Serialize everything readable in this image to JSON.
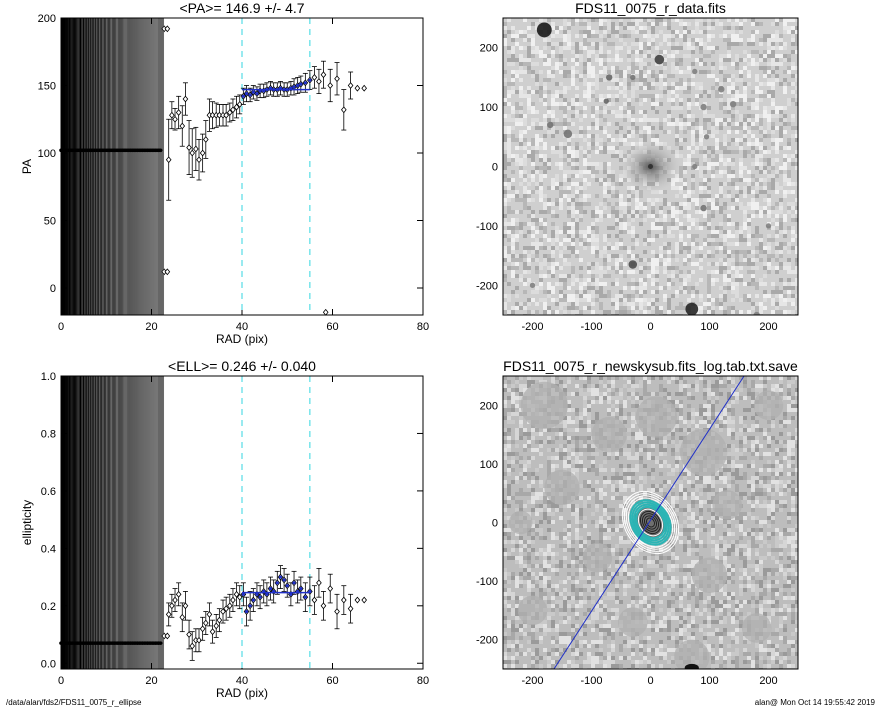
{
  "footer": {
    "left": "/data/alan/fds2/FDS11_0075_r_ellipse",
    "right": "alan@  Mon Oct 14 19:55:42 2019"
  },
  "chart_data": [
    {
      "type": "scatter",
      "title": "<PA>= 146.9 +/-   4.7",
      "xlabel": "RAD (pix)",
      "ylabel": "PA",
      "xlim": [
        0,
        80
      ],
      "ylim": [
        -20,
        200
      ],
      "xticks": [
        0,
        20,
        40,
        60,
        80
      ],
      "yticks": [
        0,
        50,
        100,
        150,
        200
      ],
      "xtick_labels": [
        "0",
        "20",
        "40",
        "60",
        "80"
      ],
      "ytick_labels": [
        "0",
        "50",
        "100",
        "150",
        "200"
      ],
      "fit_range": [
        40,
        55
      ],
      "mean_value": 146.9,
      "inner_flat_value": 102,
      "inner_flat_range": [
        0,
        22
      ],
      "outliers": [
        [
          22.8,
          192
        ],
        [
          22.8,
          12
        ],
        [
          23.5,
          192
        ],
        [
          23.5,
          12
        ],
        [
          58.5,
          -18
        ]
      ],
      "points": [
        {
          "x": 23.8,
          "y": 95,
          "err": 30
        },
        {
          "x": 24.5,
          "y": 128,
          "err": 10
        },
        {
          "x": 25.2,
          "y": 125,
          "err": 8
        },
        {
          "x": 26,
          "y": 130,
          "err": 12
        },
        {
          "x": 26.8,
          "y": 120,
          "err": 15
        },
        {
          "x": 27.5,
          "y": 140,
          "err": 12
        },
        {
          "x": 28.3,
          "y": 104,
          "err": 20
        },
        {
          "x": 29,
          "y": 100,
          "err": 18
        },
        {
          "x": 29.8,
          "y": 103,
          "err": 16
        },
        {
          "x": 30.5,
          "y": 95,
          "err": 15
        },
        {
          "x": 31.3,
          "y": 100,
          "err": 14
        },
        {
          "x": 32,
          "y": 110,
          "err": 14
        },
        {
          "x": 32.8,
          "y": 128,
          "err": 12
        },
        {
          "x": 33.5,
          "y": 128,
          "err": 10
        },
        {
          "x": 34.3,
          "y": 128,
          "err": 9
        },
        {
          "x": 35,
          "y": 128,
          "err": 8
        },
        {
          "x": 35.8,
          "y": 128,
          "err": 8
        },
        {
          "x": 36.5,
          "y": 128,
          "err": 8
        },
        {
          "x": 37.3,
          "y": 130,
          "err": 7
        },
        {
          "x": 38,
          "y": 132,
          "err": 8
        },
        {
          "x": 38.8,
          "y": 134,
          "err": 8
        },
        {
          "x": 39.5,
          "y": 136,
          "err": 7
        },
        {
          "x": 40.3,
          "y": 142,
          "err": 6
        },
        {
          "x": 41,
          "y": 144,
          "err": 6
        },
        {
          "x": 41.8,
          "y": 143,
          "err": 5
        },
        {
          "x": 42.5,
          "y": 145,
          "err": 5
        },
        {
          "x": 43.3,
          "y": 144,
          "err": 5
        },
        {
          "x": 44,
          "y": 146,
          "err": 5
        },
        {
          "x": 44.8,
          "y": 146,
          "err": 5
        },
        {
          "x": 45.5,
          "y": 147,
          "err": 5
        },
        {
          "x": 46.3,
          "y": 148,
          "err": 5
        },
        {
          "x": 47,
          "y": 147,
          "err": 5
        },
        {
          "x": 47.8,
          "y": 147,
          "err": 5
        },
        {
          "x": 48.5,
          "y": 148,
          "err": 5
        },
        {
          "x": 49.3,
          "y": 147,
          "err": 5
        },
        {
          "x": 50,
          "y": 147,
          "err": 5
        },
        {
          "x": 50.8,
          "y": 148,
          "err": 5
        },
        {
          "x": 51.5,
          "y": 149,
          "err": 6
        },
        {
          "x": 52.3,
          "y": 150,
          "err": 6
        },
        {
          "x": 53,
          "y": 151,
          "err": 6
        },
        {
          "x": 54,
          "y": 152,
          "err": 7
        },
        {
          "x": 55,
          "y": 154,
          "err": 7
        },
        {
          "x": 56,
          "y": 156,
          "err": 8
        },
        {
          "x": 57,
          "y": 153,
          "err": 9
        },
        {
          "x": 58,
          "y": 158,
          "err": 10
        },
        {
          "x": 59.5,
          "y": 150,
          "err": 12
        },
        {
          "x": 61,
          "y": 155,
          "err": 12
        },
        {
          "x": 62.5,
          "y": 132,
          "err": 15
        },
        {
          "x": 64,
          "y": 150,
          "err": 10
        },
        {
          "x": 65.5,
          "y": 148,
          "err": 0
        },
        {
          "x": 67,
          "y": 148,
          "err": 0
        }
      ]
    },
    {
      "type": "image",
      "title": "FDS11_0075_r_data.fits",
      "xlim": [
        -250,
        250
      ],
      "ylim": [
        -250,
        250
      ],
      "xticks": [
        -200,
        -100,
        0,
        100,
        200
      ],
      "yticks": [
        -200,
        -100,
        0,
        100,
        200
      ],
      "xtick_labels": [
        "-200",
        "-100",
        "0",
        "100",
        "200"
      ],
      "ytick_labels": [
        "-200",
        "-100",
        "0",
        "100",
        "200"
      ],
      "sources": [
        {
          "x": -180,
          "y": 230,
          "r": 14,
          "v": 0.1
        },
        {
          "x": 15,
          "y": 180,
          "r": 9,
          "v": 0.25
        },
        {
          "x": -70,
          "y": 150,
          "r": 6,
          "v": 0.4
        },
        {
          "x": -30,
          "y": 150,
          "r": 5,
          "v": 0.45
        },
        {
          "x": -75,
          "y": 110,
          "r": 5,
          "v": 0.4
        },
        {
          "x": -170,
          "y": 70,
          "r": 6,
          "v": 0.45
        },
        {
          "x": -140,
          "y": 55,
          "r": 8,
          "v": 0.45
        },
        {
          "x": 75,
          "y": 160,
          "r": 5,
          "v": 0.5
        },
        {
          "x": 90,
          "y": 100,
          "r": 6,
          "v": 0.5
        },
        {
          "x": 120,
          "y": 130,
          "r": 6,
          "v": 0.5
        },
        {
          "x": 140,
          "y": 105,
          "r": 6,
          "v": 0.5
        },
        {
          "x": 95,
          "y": 50,
          "r": 5,
          "v": 0.5
        },
        {
          "x": 75,
          "y": 0,
          "r": 5,
          "v": 0.5
        },
        {
          "x": 90,
          "y": -70,
          "r": 6,
          "v": 0.45
        },
        {
          "x": -30,
          "y": -165,
          "r": 8,
          "v": 0.3
        },
        {
          "x": 70,
          "y": -240,
          "r": 12,
          "v": 0.15
        },
        {
          "x": -200,
          "y": -200,
          "r": 5,
          "v": 0.5
        },
        {
          "x": 200,
          "y": -100,
          "r": 5,
          "v": 0.5
        },
        {
          "x": 180,
          "y": -250,
          "r": 6,
          "v": 0.5
        }
      ]
    },
    {
      "type": "scatter",
      "title": "<ELL>= 0.246 +/-  0.040",
      "xlabel": "RAD (pix)",
      "ylabel": "ellipticity",
      "xlim": [
        0,
        80
      ],
      "ylim": [
        -0.02,
        1.0
      ],
      "xticks": [
        0,
        20,
        40,
        60,
        80
      ],
      "yticks": [
        0.0,
        0.2,
        0.4,
        0.6,
        0.8,
        1.0
      ],
      "xtick_labels": [
        "0",
        "20",
        "40",
        "60",
        "80"
      ],
      "ytick_labels": [
        "0.0",
        "0.2",
        "0.4",
        "0.6",
        "0.8",
        "1.0"
      ],
      "fit_range": [
        40,
        55
      ],
      "mean_value": 0.246,
      "inner_flat_value": 0.07,
      "inner_flat_range": [
        0,
        22
      ],
      "outliers": [
        [
          22.8,
          0.095
        ],
        [
          23.5,
          0.095
        ]
      ],
      "points": [
        {
          "x": 23.8,
          "y": 0.17,
          "err": 0.04
        },
        {
          "x": 24.5,
          "y": 0.2,
          "err": 0.04
        },
        {
          "x": 25.2,
          "y": 0.22,
          "err": 0.04
        },
        {
          "x": 26,
          "y": 0.24,
          "err": 0.04
        },
        {
          "x": 26.8,
          "y": 0.16,
          "err": 0.05
        },
        {
          "x": 27.5,
          "y": 0.2,
          "err": 0.05
        },
        {
          "x": 28.3,
          "y": 0.1,
          "err": 0.05
        },
        {
          "x": 29,
          "y": 0.06,
          "err": 0.05
        },
        {
          "x": 29.8,
          "y": 0.08,
          "err": 0.04
        },
        {
          "x": 30.5,
          "y": 0.08,
          "err": 0.04
        },
        {
          "x": 31.3,
          "y": 0.12,
          "err": 0.04
        },
        {
          "x": 32,
          "y": 0.14,
          "err": 0.04
        },
        {
          "x": 32.8,
          "y": 0.17,
          "err": 0.04
        },
        {
          "x": 33.5,
          "y": 0.11,
          "err": 0.04
        },
        {
          "x": 34.3,
          "y": 0.13,
          "err": 0.04
        },
        {
          "x": 35,
          "y": 0.15,
          "err": 0.04
        },
        {
          "x": 35.8,
          "y": 0.18,
          "err": 0.04
        },
        {
          "x": 36.5,
          "y": 0.19,
          "err": 0.04
        },
        {
          "x": 37.3,
          "y": 0.2,
          "err": 0.04
        },
        {
          "x": 38,
          "y": 0.22,
          "err": 0.04
        },
        {
          "x": 38.8,
          "y": 0.24,
          "err": 0.04
        },
        {
          "x": 39.5,
          "y": 0.23,
          "err": 0.04
        },
        {
          "x": 40.3,
          "y": 0.24,
          "err": 0.04
        },
        {
          "x": 41,
          "y": 0.18,
          "err": 0.05
        },
        {
          "x": 41.8,
          "y": 0.2,
          "err": 0.05
        },
        {
          "x": 42.5,
          "y": 0.22,
          "err": 0.04
        },
        {
          "x": 43.3,
          "y": 0.24,
          "err": 0.04
        },
        {
          "x": 44,
          "y": 0.23,
          "err": 0.04
        },
        {
          "x": 44.8,
          "y": 0.25,
          "err": 0.04
        },
        {
          "x": 45.5,
          "y": 0.24,
          "err": 0.04
        },
        {
          "x": 46.3,
          "y": 0.26,
          "err": 0.04
        },
        {
          "x": 47,
          "y": 0.25,
          "err": 0.04
        },
        {
          "x": 47.8,
          "y": 0.28,
          "err": 0.04
        },
        {
          "x": 48.5,
          "y": 0.3,
          "err": 0.04
        },
        {
          "x": 49.3,
          "y": 0.29,
          "err": 0.04
        },
        {
          "x": 50,
          "y": 0.27,
          "err": 0.04
        },
        {
          "x": 50.8,
          "y": 0.24,
          "err": 0.04
        },
        {
          "x": 51.5,
          "y": 0.28,
          "err": 0.04
        },
        {
          "x": 52.3,
          "y": 0.25,
          "err": 0.04
        },
        {
          "x": 53,
          "y": 0.26,
          "err": 0.04
        },
        {
          "x": 54,
          "y": 0.23,
          "err": 0.05
        },
        {
          "x": 55,
          "y": 0.25,
          "err": 0.05
        },
        {
          "x": 56,
          "y": 0.22,
          "err": 0.05
        },
        {
          "x": 57,
          "y": 0.28,
          "err": 0.05
        },
        {
          "x": 58,
          "y": 0.2,
          "err": 0.05
        },
        {
          "x": 59.5,
          "y": 0.26,
          "err": 0.05
        },
        {
          "x": 61,
          "y": 0.18,
          "err": 0.06
        },
        {
          "x": 62.5,
          "y": 0.22,
          "err": 0.05
        },
        {
          "x": 64,
          "y": 0.19,
          "err": 0.05
        },
        {
          "x": 65.5,
          "y": 0.22,
          "err": 0.0
        },
        {
          "x": 67,
          "y": 0.22,
          "err": 0.0
        }
      ]
    },
    {
      "type": "image",
      "title": "FDS11_0075_r_newskysub.fits_log.tab.txt.save",
      "xlim": [
        -250,
        250
      ],
      "ylim": [
        -250,
        250
      ],
      "xticks": [
        -200,
        -100,
        0,
        100,
        200
      ],
      "yticks": [
        -200,
        -100,
        0,
        100,
        200
      ],
      "xtick_labels": [
        "-200",
        "-100",
        "0",
        "100",
        "200"
      ],
      "ytick_labels": [
        "-200",
        "-100",
        "0",
        "100",
        "200"
      ],
      "major_axis_pa_deg": 146.9,
      "ellipticity": 0.246,
      "ellipse_sma": [
        8,
        12,
        16,
        20,
        24,
        28,
        32,
        36,
        40,
        44,
        48,
        52,
        56
      ],
      "masks": [
        {
          "x": -180,
          "y": 200,
          "r": 40
        },
        {
          "x": -70,
          "y": 150,
          "r": 30
        },
        {
          "x": 10,
          "y": 180,
          "r": 35
        },
        {
          "x": 90,
          "y": 120,
          "r": 40
        },
        {
          "x": -150,
          "y": 60,
          "r": 30
        },
        {
          "x": 130,
          "y": 30,
          "r": 25
        },
        {
          "x": -90,
          "y": -60,
          "r": 25
        },
        {
          "x": 100,
          "y": -90,
          "r": 30
        },
        {
          "x": -30,
          "y": -170,
          "r": 25
        },
        {
          "x": 70,
          "y": -230,
          "r": 30
        },
        {
          "x": -200,
          "y": -150,
          "r": 25
        },
        {
          "x": 180,
          "y": -180,
          "r": 25
        },
        {
          "x": 200,
          "y": 200,
          "r": 25
        },
        {
          "x": -220,
          "y": 0,
          "r": 20
        }
      ]
    }
  ]
}
